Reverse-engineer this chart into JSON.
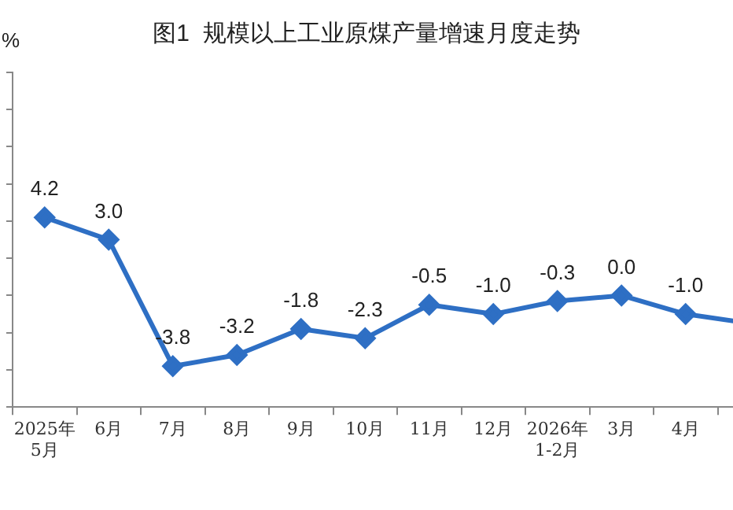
{
  "chart_data": {
    "type": "line",
    "title": "图1  规模以上工业原煤产量增速月度走势",
    "ylabel": "%",
    "categories": [
      "2025年\n5月",
      "6月",
      "7月",
      "8月",
      "9月",
      "10月",
      "11月",
      "12月",
      "2026年\n1-2月",
      "3月",
      "4月",
      null
    ],
    "values": [
      4.2,
      3.0,
      -3.8,
      -3.2,
      -1.8,
      -2.3,
      -0.5,
      -1.0,
      -0.3,
      0.0,
      -1.0,
      -1.5
    ],
    "value_labels": [
      "4.2",
      "3.0",
      "-3.8",
      "-3.2",
      "-1.8",
      "-2.3",
      "-0.5",
      "-1.0",
      "-0.3",
      "0.0",
      "-1.0",
      null
    ],
    "color": "#2e6fc4",
    "marker": "diamond",
    "line_style": "solid",
    "grid": false,
    "legend": false,
    "ylim": [
      -6,
      12
    ],
    "yticks": [
      {
        "value": -6,
        "label": null
      },
      {
        "value": -4,
        "label": null
      },
      {
        "value": -2,
        "label": null
      },
      {
        "value": 0,
        "label": null
      },
      {
        "value": 2,
        "label": null
      },
      {
        "value": 4,
        "label": null
      },
      {
        "value": 6,
        "label": null
      },
      {
        "value": 8,
        "label": null
      },
      {
        "value": 10,
        "label": null
      },
      {
        "value": 12,
        "label": null
      }
    ]
  }
}
